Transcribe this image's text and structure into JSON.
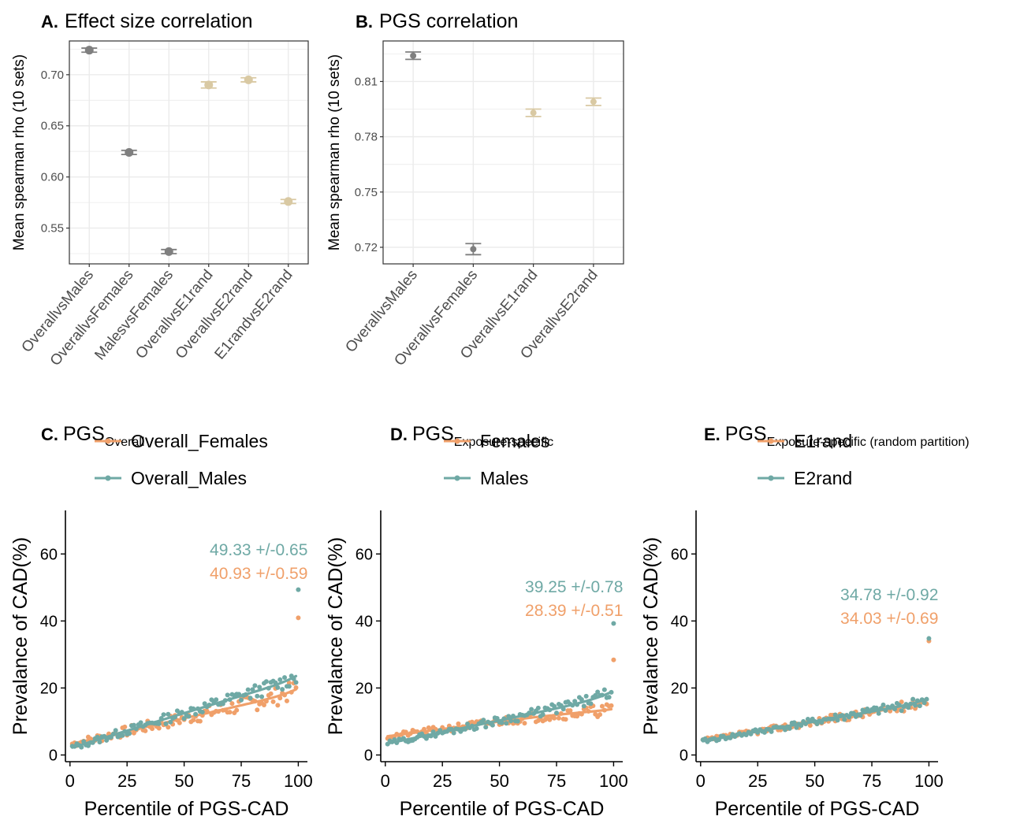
{
  "colors": {
    "grey": "#7f7f7f",
    "tan": "#d9c9a3",
    "orange": "#f0a06a",
    "teal": "#6fa9a5",
    "grid": "#ebebeb",
    "axis": "#333333"
  },
  "chart_data": [
    {
      "id": "A",
      "type": "scatter",
      "letter": "A.",
      "title": "Effect size correlation",
      "ylabel": "Mean spearman rho (10 sets)",
      "categories": [
        "OverallvsMales",
        "OverallvsFemales",
        "MalesvsFemales",
        "OverallvsE1rand",
        "OverallvsE2rand",
        "E1randvsE2rand"
      ],
      "values": [
        0.724,
        0.624,
        0.527,
        0.69,
        0.695,
        0.576
      ],
      "errors": [
        0.002,
        0.002,
        0.002,
        0.003,
        0.002,
        0.002
      ],
      "point_colors": [
        "grey",
        "grey",
        "grey",
        "tan",
        "tan",
        "tan"
      ],
      "ylim": [
        0.515,
        0.733
      ],
      "yticks": [
        0.55,
        0.6,
        0.65,
        0.7
      ],
      "ytick_labels": [
        "0.55",
        "0.60",
        "0.65",
        "0.70"
      ],
      "grid": true
    },
    {
      "id": "B",
      "type": "scatter",
      "letter": "B.",
      "title": "PGS correlation",
      "ylabel": "Mean spearman rho (10 sets)",
      "categories": [
        "OverallvsMales",
        "OverallvsFemales",
        "OverallvsE1rand",
        "OverallvsE2rand"
      ],
      "values": [
        0.824,
        0.719,
        0.793,
        0.799
      ],
      "errors": [
        0.002,
        0.003,
        0.002,
        0.002
      ],
      "point_colors": [
        "grey",
        "grey",
        "tan",
        "tan"
      ],
      "ylim": [
        0.711,
        0.832
      ],
      "yticks": [
        0.72,
        0.75,
        0.78,
        0.81
      ],
      "ytick_labels": [
        "0.72",
        "0.75",
        "0.78",
        "0.81"
      ],
      "grid": true
    },
    {
      "id": "C",
      "type": "line",
      "letter": "C.",
      "title": "PGS",
      "title_sub": "Overall",
      "xlabel": "Percentile of PGS-CAD",
      "ylabel": "Prevalance of CAD(%)",
      "xlim": [
        -2,
        104
      ],
      "ylim": [
        -2,
        73
      ],
      "xticks": [
        0,
        25,
        50,
        75,
        100
      ],
      "yticks": [
        0,
        20,
        40,
        60
      ],
      "legend_position": "top",
      "series": [
        {
          "name": "Overall_Females",
          "color": "orange",
          "a": 3.2,
          "b": 0.155,
          "c": 0.3,
          "k": 11,
          "jitter": 1.1,
          "seed": 7,
          "top_value": 40.93,
          "label": "40.93 +/-0.59"
        },
        {
          "name": "Overall_Males",
          "color": "teal",
          "a": 2.0,
          "b": 0.21,
          "c": 0.35,
          "k": 11,
          "jitter": 0.9,
          "seed": 13,
          "top_value": 49.33,
          "label": "49.33 +/-0.65"
        }
      ]
    },
    {
      "id": "D",
      "type": "line",
      "letter": "D.",
      "title": "PGS",
      "title_sub": "Exposure-specific",
      "xlabel": "Percentile of PGS-CAD",
      "ylabel": "Prevalance of CAD(%)",
      "xlim": [
        -2,
        104
      ],
      "ylim": [
        -2,
        73
      ],
      "xticks": [
        0,
        25,
        50,
        75,
        100
      ],
      "yticks": [
        0,
        20,
        40,
        60
      ],
      "legend_position": "top",
      "series": [
        {
          "name": "Females",
          "color": "orange",
          "a": 5.5,
          "b": 0.09,
          "c": 0.2,
          "k": 10,
          "jitter": 0.7,
          "seed": 21,
          "top_value": 28.39,
          "label": "28.39 +/-0.51"
        },
        {
          "name": "Males",
          "color": "teal",
          "a": 3.3,
          "b": 0.14,
          "c": 0.3,
          "k": 10,
          "jitter": 0.7,
          "seed": 29,
          "top_value": 39.25,
          "label": "39.25 +/-0.78"
        }
      ]
    },
    {
      "id": "E",
      "type": "line",
      "letter": "E.",
      "title": "PGS",
      "title_sub": "Exposure-specific (random partition)",
      "xlabel": "Percentile of PGS-CAD",
      "ylabel": "Prevalance of CAD(%)",
      "xlim": [
        -2,
        104
      ],
      "ylim": [
        -2,
        73
      ],
      "xticks": [
        0,
        25,
        50,
        75,
        100
      ],
      "yticks": [
        0,
        20,
        40,
        60
      ],
      "legend_position": "top",
      "series": [
        {
          "name": "E1rand",
          "color": "orange",
          "a": 4.2,
          "b": 0.115,
          "c": 0.25,
          "k": 10,
          "jitter": 0.6,
          "seed": 37,
          "top_value": 34.03,
          "label": "34.03 +/-0.69"
        },
        {
          "name": "E2rand",
          "color": "teal",
          "a": 4.0,
          "b": 0.12,
          "c": 0.25,
          "k": 10,
          "jitter": 0.6,
          "seed": 41,
          "top_value": 34.78,
          "label": "34.78 +/-0.92"
        }
      ]
    }
  ]
}
